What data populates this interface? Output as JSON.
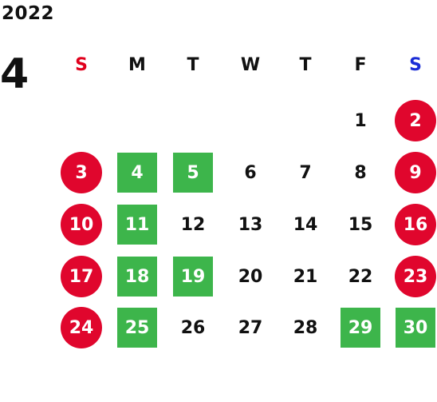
{
  "year": "2022",
  "month": "4",
  "weekdays": [
    {
      "label": "S",
      "color": "#e0001c"
    },
    {
      "label": "M",
      "color": "#111111"
    },
    {
      "label": "T",
      "color": "#111111"
    },
    {
      "label": "W",
      "color": "#111111"
    },
    {
      "label": "T",
      "color": "#111111"
    },
    {
      "label": "F",
      "color": "#111111"
    },
    {
      "label": "S",
      "color": "#1a2cd6"
    }
  ],
  "colors": {
    "holiday_circle": "#e0062d",
    "highlight_square": "#3db54b",
    "text": "#111111"
  },
  "days": [
    {
      "day": "1",
      "week": 0,
      "weekday": 5,
      "style": "plain"
    },
    {
      "day": "2",
      "week": 0,
      "weekday": 6,
      "style": "circle"
    },
    {
      "day": "3",
      "week": 1,
      "weekday": 0,
      "style": "circle"
    },
    {
      "day": "4",
      "week": 1,
      "weekday": 1,
      "style": "square"
    },
    {
      "day": "5",
      "week": 1,
      "weekday": 2,
      "style": "square"
    },
    {
      "day": "6",
      "week": 1,
      "weekday": 3,
      "style": "plain"
    },
    {
      "day": "7",
      "week": 1,
      "weekday": 4,
      "style": "plain"
    },
    {
      "day": "8",
      "week": 1,
      "weekday": 5,
      "style": "plain"
    },
    {
      "day": "9",
      "week": 1,
      "weekday": 6,
      "style": "circle"
    },
    {
      "day": "10",
      "week": 2,
      "weekday": 0,
      "style": "circle"
    },
    {
      "day": "11",
      "week": 2,
      "weekday": 1,
      "style": "square"
    },
    {
      "day": "12",
      "week": 2,
      "weekday": 2,
      "style": "plain"
    },
    {
      "day": "13",
      "week": 2,
      "weekday": 3,
      "style": "plain"
    },
    {
      "day": "14",
      "week": 2,
      "weekday": 4,
      "style": "plain"
    },
    {
      "day": "15",
      "week": 2,
      "weekday": 5,
      "style": "plain"
    },
    {
      "day": "16",
      "week": 2,
      "weekday": 6,
      "style": "circle"
    },
    {
      "day": "17",
      "week": 3,
      "weekday": 0,
      "style": "circle"
    },
    {
      "day": "18",
      "week": 3,
      "weekday": 1,
      "style": "square"
    },
    {
      "day": "19",
      "week": 3,
      "weekday": 2,
      "style": "square"
    },
    {
      "day": "20",
      "week": 3,
      "weekday": 3,
      "style": "plain"
    },
    {
      "day": "21",
      "week": 3,
      "weekday": 4,
      "style": "plain"
    },
    {
      "day": "22",
      "week": 3,
      "weekday": 5,
      "style": "plain"
    },
    {
      "day": "23",
      "week": 3,
      "weekday": 6,
      "style": "circle"
    },
    {
      "day": "24",
      "week": 4,
      "weekday": 0,
      "style": "circle"
    },
    {
      "day": "25",
      "week": 4,
      "weekday": 1,
      "style": "square"
    },
    {
      "day": "26",
      "week": 4,
      "weekday": 2,
      "style": "plain"
    },
    {
      "day": "27",
      "week": 4,
      "weekday": 3,
      "style": "plain"
    },
    {
      "day": "28",
      "week": 4,
      "weekday": 4,
      "style": "plain"
    },
    {
      "day": "29",
      "week": 4,
      "weekday": 5,
      "style": "square"
    },
    {
      "day": "30",
      "week": 4,
      "weekday": 6,
      "style": "square"
    }
  ]
}
